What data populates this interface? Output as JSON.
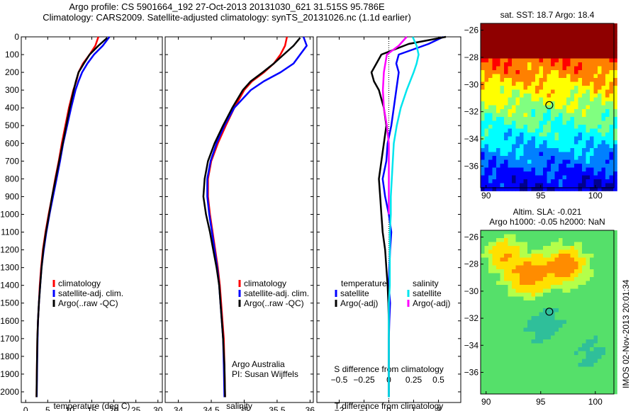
{
  "header": {
    "line1": "Argo profile: CS 5901664_192 27-Oct-2013 20131030_621 31.515S 95.786E",
    "line2": "Climatology: CARS2009. Satellite-adjusted climatology: synTS_20131026.nc (1.1d earlier)"
  },
  "colors": {
    "climatology": "#ff0000",
    "satellite": "#0000ff",
    "argo": "#000000",
    "satellite_s": "#00e5ee",
    "argo_s": "#ff00ff"
  },
  "chart_data": [
    {
      "id": "temperature",
      "type": "line",
      "xlabel": "temperature (deg C)",
      "ylabel": "",
      "xlim": [
        -1,
        31
      ],
      "ylim": [
        2060,
        0
      ],
      "xticks": [
        0,
        5,
        10,
        15,
        20,
        25,
        30
      ],
      "yticks": [
        0,
        100,
        200,
        300,
        400,
        500,
        600,
        700,
        800,
        900,
        1000,
        1100,
        1200,
        1300,
        1400,
        1500,
        1600,
        1700,
        1800,
        1900,
        2000
      ],
      "legend": [
        "climatology",
        "satellite-adj. clim.",
        "Argo(..raw -QC)"
      ],
      "series": [
        {
          "name": "climatology",
          "color": "#ff0000",
          "x": [
            16.5,
            15.8,
            14.5,
            13,
            12,
            11.5,
            10.8,
            9.8,
            9,
            8.2,
            7.5,
            6.7,
            6,
            5.2,
            4.5,
            3.9,
            3.5,
            3.2,
            3.0,
            2.8,
            2.65,
            2.55,
            2.45
          ],
          "y": [
            0,
            50,
            100,
            150,
            200,
            250,
            300,
            400,
            500,
            600,
            700,
            800,
            900,
            1000,
            1100,
            1200,
            1300,
            1400,
            1500,
            1600,
            1700,
            1850,
            2030
          ]
        },
        {
          "name": "satellite-adj. clim.",
          "color": "#0000ff",
          "x": [
            19,
            17.5,
            15.5,
            14,
            12.8,
            12,
            11.3,
            10.3,
            9.4,
            8.5,
            7.8,
            7,
            6.2,
            5.4,
            4.7,
            4.1,
            3.6,
            3.3,
            3.0,
            2.8,
            2.7,
            2.6,
            2.5
          ],
          "y": [
            0,
            50,
            100,
            150,
            200,
            250,
            300,
            400,
            500,
            600,
            700,
            800,
            900,
            1000,
            1100,
            1200,
            1300,
            1400,
            1500,
            1600,
            1700,
            1850,
            2030
          ]
        },
        {
          "name": "Argo(..raw -QC)",
          "color": "#000000",
          "x": [
            18.5,
            16.5,
            14.5,
            13.2,
            12,
            11.4,
            10.9,
            10,
            9.2,
            8.4,
            7.6,
            6.8,
            6.0,
            5.3,
            4.6,
            4.0,
            3.6,
            3.3,
            3.0,
            2.8,
            2.65,
            2.55,
            2.45
          ],
          "y": [
            5,
            50,
            100,
            150,
            200,
            250,
            300,
            400,
            500,
            600,
            700,
            800,
            900,
            1000,
            1100,
            1200,
            1300,
            1400,
            1500,
            1600,
            1700,
            1850,
            2030
          ]
        }
      ]
    },
    {
      "id": "salinity",
      "type": "line",
      "xlabel": "salinity",
      "ylabel": "",
      "xlim": [
        33.8,
        36.05
      ],
      "ylim": [
        2060,
        0
      ],
      "xticks": [
        34,
        34.5,
        35,
        35.5,
        36
      ],
      "legend": [
        "climatology",
        "satellite-adj. clim.",
        "Argo(..raw -QC)"
      ],
      "annotation": [
        "Argo Australia",
        "PI: Susan Wijffels"
      ],
      "series": [
        {
          "name": "climatology",
          "color": "#ff0000",
          "x": [
            35.65,
            35.62,
            35.55,
            35.45,
            35.3,
            35.12,
            35.0,
            34.85,
            34.72,
            34.6,
            34.5,
            34.45,
            34.45,
            34.48,
            34.52,
            34.56,
            34.6,
            34.63,
            34.65,
            34.67,
            34.69,
            34.7,
            34.71
          ],
          "y": [
            0,
            50,
            100,
            150,
            200,
            250,
            300,
            400,
            500,
            600,
            700,
            800,
            900,
            1000,
            1100,
            1200,
            1300,
            1400,
            1500,
            1600,
            1700,
            1850,
            2030
          ]
        },
        {
          "name": "satellite-adj. clim.",
          "color": "#0000ff",
          "x": [
            35.9,
            35.95,
            35.85,
            35.75,
            35.55,
            35.3,
            35.1,
            34.85,
            34.7,
            34.58,
            34.49,
            34.44,
            34.44,
            34.47,
            34.51,
            34.55,
            34.59,
            34.62,
            34.64,
            34.66,
            34.68,
            34.69,
            34.7
          ],
          "y": [
            0,
            50,
            100,
            150,
            200,
            250,
            300,
            400,
            500,
            600,
            700,
            800,
            900,
            1000,
            1100,
            1200,
            1300,
            1400,
            1500,
            1600,
            1700,
            1850,
            2030
          ]
        },
        {
          "name": "Argo(..raw -QC)",
          "color": "#000000",
          "x": [
            35.85,
            35.75,
            35.6,
            35.45,
            35.28,
            35.1,
            34.98,
            34.82,
            34.68,
            34.55,
            34.45,
            34.4,
            34.38,
            34.42,
            34.48,
            34.53,
            34.58,
            34.62,
            34.64,
            34.66,
            34.68,
            34.7,
            34.71
          ],
          "y": [
            5,
            50,
            100,
            150,
            200,
            250,
            300,
            400,
            500,
            600,
            700,
            800,
            900,
            1000,
            1100,
            1200,
            1300,
            1400,
            1500,
            1600,
            1700,
            1850,
            2030
          ]
        }
      ]
    },
    {
      "id": "difference",
      "type": "line",
      "xlabel": "T difference from climatology",
      "x2label": "S difference from climatology",
      "xlim": [
        -2.9,
        2.9
      ],
      "ylim": [
        2060,
        0
      ],
      "xticks": [
        -2,
        -1,
        0,
        1,
        2
      ],
      "xticks2": [
        -0.5,
        -0.25,
        0,
        0.25,
        0.5
      ],
      "x2lim": [
        -0.725,
        0.725
      ],
      "legend_temperature": {
        "title": "temperature",
        "items": [
          "satellite",
          "Argo(-adj)"
        ]
      },
      "legend_salinity": {
        "title": "salinity",
        "items": [
          "satellite",
          "Argo(-adj)"
        ]
      },
      "series": [
        {
          "name": "satellite",
          "group": "temperature",
          "color": "#0000ff",
          "x": [
            2.2,
            1.6,
            0.4,
            0.3,
            0.4,
            0.3,
            0.2,
            0.1,
            -0.05,
            -0.1,
            -0.25,
            -0.15,
            0,
            0.1,
            0.05,
            0.02,
            0,
            0.05,
            0.02,
            0,
            0,
            0
          ],
          "y": [
            0,
            40,
            100,
            150,
            200,
            300,
            400,
            500,
            600,
            700,
            800,
            900,
            1000,
            1100,
            1200,
            1300,
            1400,
            1500,
            1600,
            1700,
            1850,
            2030
          ]
        },
        {
          "name": "Argo(-adj)",
          "group": "temperature",
          "color": "#000000",
          "x": [
            2.3,
            0.8,
            -0.3,
            -0.5,
            -0.7,
            -0.6,
            -0.4,
            -0.2,
            -0.1,
            -0.2,
            -0.3,
            -0.4,
            -0.35,
            -0.3,
            -0.25,
            -0.15,
            -0.1,
            -0.05,
            -0.02,
            0,
            0,
            0
          ],
          "y": [
            0,
            40,
            100,
            150,
            200,
            250,
            300,
            400,
            500,
            600,
            700,
            800,
            900,
            1000,
            1100,
            1200,
            1300,
            1400,
            1500,
            1600,
            1800,
            2030
          ]
        },
        {
          "name": "satellite",
          "group": "salinity",
          "color": "#00e5ee",
          "x": [
            0.24,
            0.28,
            0.3,
            0.28,
            0.25,
            0.18,
            0.12,
            0.08,
            0.05,
            0.04,
            0.03,
            0.02,
            0.02,
            0.01,
            0.01,
            0.01,
            0.01,
            0.0,
            0.0,
            0.0,
            0.0
          ],
          "y": [
            0,
            50,
            100,
            150,
            200,
            300,
            400,
            500,
            600,
            700,
            800,
            900,
            1000,
            1100,
            1200,
            1300,
            1400,
            1500,
            1600,
            1800,
            2030
          ]
        },
        {
          "name": "Argo(-adj)",
          "group": "salinity",
          "color": "#ff00ff",
          "x": [
            0.18,
            0.1,
            -0.02,
            -0.05,
            -0.06,
            -0.05,
            -0.02,
            0.0,
            0.0,
            0.0,
            0.0,
            0.0
          ],
          "y": [
            0,
            50,
            100,
            200,
            300,
            400,
            500,
            600,
            700,
            800,
            900,
            1000
          ]
        }
      ]
    },
    {
      "id": "sst_map",
      "type": "heatmap",
      "title": "sat. SST: 18.7  Argo: 18.4",
      "xlim": [
        89.5,
        101.7
      ],
      "ylim": [
        -37.6,
        -25.5
      ],
      "xticks": [
        90,
        95,
        100
      ],
      "yticks": [
        -26,
        -28,
        -30,
        -32,
        -34,
        -36
      ],
      "marker": {
        "lon": 95.786,
        "lat": -31.515
      },
      "colormap": [
        "#00008f",
        "#0000ff",
        "#0080ff",
        "#00ffff",
        "#80ff80",
        "#ffff00",
        "#ff8000",
        "#ff0000",
        "#8f0000"
      ]
    },
    {
      "id": "sla_map",
      "type": "heatmap",
      "title": "Altim. SLA: -0.021",
      "subtitle": "Argo h1000: -0.05 h2000: NaN",
      "xlim": [
        89.5,
        101.7
      ],
      "ylim": [
        -37.6,
        -25.5
      ],
      "xticks": [
        90,
        95,
        100
      ],
      "yticks": [
        -26,
        -28,
        -30,
        -32,
        -34,
        -36
      ],
      "marker": {
        "lon": 95.786,
        "lat": -31.515
      }
    }
  ],
  "footer": {
    "side_label": "IMOS 02-Nov-2013 20:01:34"
  }
}
